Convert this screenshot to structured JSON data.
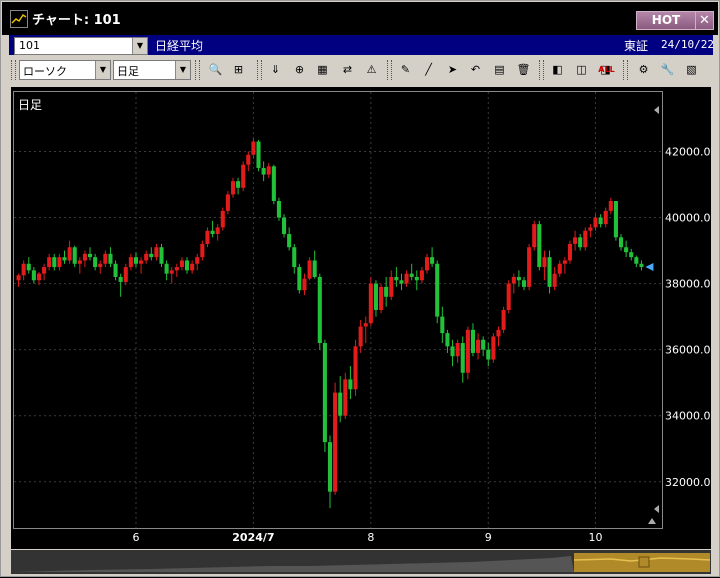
{
  "window": {
    "title": "チャート: 101",
    "hot_label": "HOT",
    "close_label": "✕"
  },
  "info": {
    "code": "101",
    "name": "日経平均",
    "exchange": "東証",
    "date": "24/10/22"
  },
  "toolbar": {
    "chart_type": "ローソク",
    "period": "日足"
  },
  "chart_label": "日足",
  "icons": [
    "search-icon",
    "cursor-icon",
    "download-icon",
    "zoom-icon",
    "grid-icon",
    "compare-icon",
    "alert-icon",
    "pencil-icon",
    "line-icon",
    "pointer-icon",
    "undo-icon",
    "notes-icon",
    "delete-icon",
    "left-range-icon",
    "mid-range-icon",
    "right-range-icon",
    "all-label",
    "settings-icon",
    "wrench-icon",
    "palette-icon"
  ],
  "colors": {
    "up": "#e21b1b",
    "down": "#22c13a",
    "grid": "#3a3a3a",
    "axis_text": "#ffffff"
  },
  "chart_data": {
    "type": "candlestick",
    "y_ticks": [
      "32000.00",
      "34000.00",
      "36000.00",
      "38000.00",
      "40000.00",
      "42000.00"
    ],
    "ylim": [
      30600,
      43800
    ],
    "x_ticks": [
      {
        "label": "6",
        "i": 23
      },
      {
        "label": "2024/7",
        "i": 46
      },
      {
        "label": "8",
        "i": 69
      },
      {
        "label": "9",
        "i": 92
      },
      {
        "label": "10",
        "i": 113
      }
    ],
    "x_tick_bold": "2024/7",
    "ohlc": [
      [
        38100,
        38300,
        37900,
        38250
      ],
      [
        38250,
        38700,
        38100,
        38600
      ],
      [
        38600,
        38800,
        38300,
        38400
      ],
      [
        38400,
        38500,
        38000,
        38100
      ],
      [
        38100,
        38350,
        37950,
        38300
      ],
      [
        38300,
        38600,
        38100,
        38500
      ],
      [
        38500,
        38900,
        38400,
        38800
      ],
      [
        38800,
        38900,
        38400,
        38500
      ],
      [
        38500,
        38900,
        38400,
        38800
      ],
      [
        38800,
        39000,
        38600,
        38700
      ],
      [
        38700,
        39300,
        38600,
        39100
      ],
      [
        39100,
        39150,
        38500,
        38600
      ],
      [
        38600,
        38800,
        38300,
        38700
      ],
      [
        38700,
        39000,
        38500,
        38900
      ],
      [
        38900,
        39100,
        38700,
        38800
      ],
      [
        38800,
        38900,
        38400,
        38500
      ],
      [
        38500,
        38700,
        38300,
        38600
      ],
      [
        38600,
        39000,
        38500,
        38900
      ],
      [
        38900,
        39100,
        38500,
        38600
      ],
      [
        38600,
        38700,
        38100,
        38200
      ],
      [
        38200,
        38300,
        37600,
        38050
      ],
      [
        38050,
        38600,
        37950,
        38500
      ],
      [
        38500,
        38900,
        38400,
        38800
      ],
      [
        38800,
        38950,
        38500,
        38600
      ],
      [
        38600,
        38800,
        38300,
        38700
      ],
      [
        38700,
        39000,
        38600,
        38900
      ],
      [
        38900,
        39100,
        38700,
        38800
      ],
      [
        38800,
        39200,
        38700,
        39100
      ],
      [
        39100,
        39200,
        38500,
        38600
      ],
      [
        38600,
        38700,
        38100,
        38300
      ],
      [
        38300,
        38500,
        38000,
        38400
      ],
      [
        38400,
        38600,
        38200,
        38500
      ],
      [
        38500,
        38800,
        38400,
        38700
      ],
      [
        38700,
        38800,
        38300,
        38400
      ],
      [
        38400,
        38700,
        38300,
        38600
      ],
      [
        38600,
        38900,
        38400,
        38800
      ],
      [
        38800,
        39300,
        38700,
        39200
      ],
      [
        39200,
        39700,
        39100,
        39600
      ],
      [
        39600,
        39900,
        39400,
        39500
      ],
      [
        39500,
        39800,
        39300,
        39700
      ],
      [
        39700,
        40300,
        39600,
        40200
      ],
      [
        40200,
        40800,
        40100,
        40700
      ],
      [
        40700,
        41200,
        40600,
        41100
      ],
      [
        41100,
        41200,
        40700,
        40900
      ],
      [
        40900,
        41700,
        40800,
        41600
      ],
      [
        41600,
        42000,
        41400,
        41900
      ],
      [
        41900,
        42400,
        41800,
        42300
      ],
      [
        42300,
        42350,
        41400,
        41500
      ],
      [
        41500,
        41700,
        41100,
        41300
      ],
      [
        41300,
        41650,
        41200,
        41550
      ],
      [
        41550,
        41600,
        40400,
        40500
      ],
      [
        40500,
        40600,
        39900,
        40000
      ],
      [
        40000,
        40100,
        39400,
        39500
      ],
      [
        39500,
        39700,
        39000,
        39100
      ],
      [
        39100,
        39200,
        38300,
        38500
      ],
      [
        38500,
        38600,
        37700,
        37800
      ],
      [
        37800,
        38300,
        37650,
        38150
      ],
      [
        38150,
        38800,
        38100,
        38700
      ],
      [
        38700,
        39000,
        38150,
        38200
      ],
      [
        38200,
        38300,
        36000,
        36200
      ],
      [
        36200,
        36300,
        32900,
        33200
      ],
      [
        33200,
        33400,
        31200,
        31700
      ],
      [
        31700,
        35000,
        31600,
        34700
      ],
      [
        34700,
        35200,
        33800,
        34000
      ],
      [
        34000,
        35300,
        33900,
        35100
      ],
      [
        35100,
        35500,
        34500,
        34800
      ],
      [
        34800,
        36300,
        34600,
        36100
      ],
      [
        36100,
        36900,
        35900,
        36700
      ],
      [
        36700,
        37000,
        36200,
        36800
      ],
      [
        36800,
        38200,
        36700,
        38000
      ],
      [
        38000,
        38100,
        37000,
        37200
      ],
      [
        37200,
        38000,
        37100,
        37900
      ],
      [
        37900,
        38200,
        37300,
        37600
      ],
      [
        37600,
        38400,
        37500,
        38200
      ],
      [
        38200,
        38500,
        37900,
        38100
      ],
      [
        38100,
        38300,
        37800,
        38000
      ],
      [
        38000,
        38400,
        37900,
        38300
      ],
      [
        38300,
        38600,
        38100,
        38200
      ],
      [
        38200,
        38400,
        37800,
        38100
      ],
      [
        38100,
        38500,
        38000,
        38400
      ],
      [
        38400,
        38900,
        38300,
        38800
      ],
      [
        38800,
        39100,
        38500,
        38600
      ],
      [
        38600,
        38700,
        36800,
        37000
      ],
      [
        37000,
        37300,
        36200,
        36500
      ],
      [
        36500,
        36600,
        35900,
        36100
      ],
      [
        36100,
        36300,
        35500,
        35800
      ],
      [
        35800,
        36300,
        35600,
        36200
      ],
      [
        36200,
        36400,
        35000,
        35300
      ],
      [
        35300,
        36700,
        35100,
        36600
      ],
      [
        36600,
        36800,
        35800,
        35900
      ],
      [
        35900,
        36500,
        35700,
        36300
      ],
      [
        36300,
        36400,
        35800,
        36000
      ],
      [
        36000,
        36200,
        35500,
        35700
      ],
      [
        35700,
        36500,
        35600,
        36400
      ],
      [
        36400,
        36700,
        36100,
        36600
      ],
      [
        36600,
        37300,
        36500,
        37200
      ],
      [
        37200,
        38100,
        37100,
        38000
      ],
      [
        38000,
        38300,
        37700,
        38200
      ],
      [
        38200,
        38400,
        37900,
        38100
      ],
      [
        38100,
        38200,
        37800,
        37900
      ],
      [
        37900,
        39200,
        37800,
        39100
      ],
      [
        39100,
        39900,
        39000,
        39800
      ],
      [
        39800,
        39900,
        38400,
        38500
      ],
      [
        38500,
        39000,
        38100,
        38800
      ],
      [
        38800,
        39000,
        37700,
        37900
      ],
      [
        37900,
        38500,
        37800,
        38300
      ],
      [
        38300,
        38700,
        38200,
        38600
      ],
      [
        38600,
        38800,
        38300,
        38700
      ],
      [
        38700,
        39300,
        38600,
        39200
      ],
      [
        39200,
        39600,
        39000,
        39400
      ],
      [
        39400,
        39500,
        39000,
        39100
      ],
      [
        39100,
        39700,
        39000,
        39600
      ],
      [
        39600,
        39800,
        39400,
        39700
      ],
      [
        39700,
        40100,
        39600,
        40000
      ],
      [
        40000,
        40100,
        39700,
        39800
      ],
      [
        39800,
        40300,
        39700,
        40200
      ],
      [
        40200,
        40600,
        40100,
        40500
      ],
      [
        40500,
        40500,
        39300,
        39400
      ],
      [
        39400,
        39500,
        39000,
        39100
      ],
      [
        39100,
        39300,
        38800,
        38950
      ],
      [
        38950,
        39050,
        38700,
        38800
      ],
      [
        38800,
        38850,
        38500,
        38600
      ],
      [
        38600,
        38700,
        38400,
        38500
      ]
    ]
  }
}
